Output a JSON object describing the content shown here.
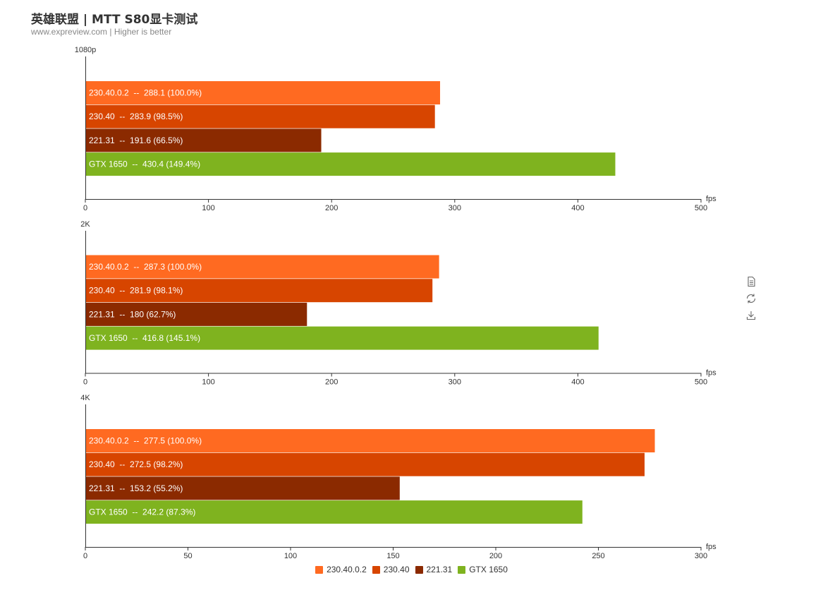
{
  "header": {
    "title": "英雄联盟 | MTT S80显卡测试",
    "subtitle": "www.expreview.com | Higher is better"
  },
  "toolbox": {
    "icons": [
      "data-view-icon",
      "restore-icon",
      "save-image-icon"
    ]
  },
  "legend": [
    {
      "name": "230.40.0.2",
      "color": "#ff6a21"
    },
    {
      "name": "230.40",
      "color": "#d74500"
    },
    {
      "name": "221.31",
      "color": "#8b2a00"
    },
    {
      "name": "GTX 1650",
      "color": "#7fb31f"
    }
  ],
  "chart_data": [
    {
      "type": "bar",
      "orientation": "horizontal",
      "title": "1080p",
      "xlabel": "fps",
      "xlim": [
        0,
        500
      ],
      "ticks": [
        0,
        100,
        200,
        300,
        400,
        500
      ],
      "bars": [
        {
          "series": "230.40.0.2",
          "value": 288.1,
          "label": "230.40.0.2  --  288.1 (100.0%)"
        },
        {
          "series": "230.40",
          "value": 283.9,
          "label": "230.40  --  283.9 (98.5%)"
        },
        {
          "series": "221.31",
          "value": 191.6,
          "label": "221.31  --  191.6 (66.5%)"
        },
        {
          "series": "GTX 1650",
          "value": 430.4,
          "label": "GTX 1650  --  430.4 (149.4%)"
        }
      ]
    },
    {
      "type": "bar",
      "orientation": "horizontal",
      "title": "2K",
      "xlabel": "fps",
      "xlim": [
        0,
        500
      ],
      "ticks": [
        0,
        100,
        200,
        300,
        400,
        500
      ],
      "bars": [
        {
          "series": "230.40.0.2",
          "value": 287.3,
          "label": "230.40.0.2  --  287.3 (100.0%)"
        },
        {
          "series": "230.40",
          "value": 281.9,
          "label": "230.40  --  281.9 (98.1%)"
        },
        {
          "series": "221.31",
          "value": 180,
          "label": "221.31  --  180 (62.7%)"
        },
        {
          "series": "GTX 1650",
          "value": 416.8,
          "label": "GTX 1650  --  416.8 (145.1%)"
        }
      ]
    },
    {
      "type": "bar",
      "orientation": "horizontal",
      "title": "4K",
      "xlabel": "fps",
      "xlim": [
        0,
        300
      ],
      "ticks": [
        0,
        50,
        100,
        150,
        200,
        250,
        300
      ],
      "bars": [
        {
          "series": "230.40.0.2",
          "value": 277.5,
          "label": "230.40.0.2  --  277.5 (100.0%)"
        },
        {
          "series": "230.40",
          "value": 272.5,
          "label": "230.40  --  272.5 (98.2%)"
        },
        {
          "series": "221.31",
          "value": 153.2,
          "label": "221.31  --  153.2 (55.2%)"
        },
        {
          "series": "GTX 1650",
          "value": 242.2,
          "label": "GTX 1650  --  242.2 (87.3%)"
        }
      ]
    }
  ]
}
